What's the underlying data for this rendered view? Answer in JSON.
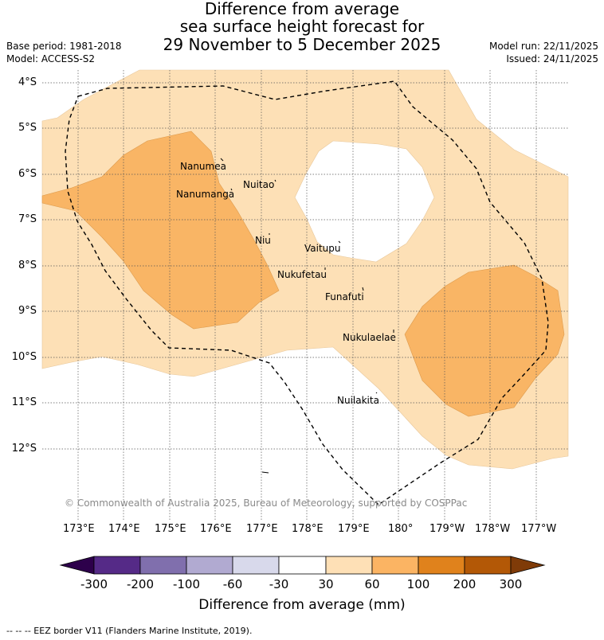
{
  "title": {
    "line1": "Difference from average",
    "line2": "sea surface height forecast for",
    "line3": "29 November to 5 December 2025"
  },
  "meta": {
    "base_period": "Base period: 1981-2018",
    "model": "Model: ACCESS-S2",
    "model_run": "Model run: 22/11/2025",
    "issued": "Issued: 24/11/2025"
  },
  "map": {
    "latitude_labels": [
      "4°S",
      "5°S",
      "6°S",
      "7°S",
      "8°S",
      "9°S",
      "10°S",
      "11°S",
      "12°S"
    ],
    "longitude_labels": [
      "173°E",
      "174°E",
      "175°E",
      "176°E",
      "177°E",
      "178°E",
      "179°E",
      "180°",
      "179°W",
      "178°W",
      "177°W"
    ],
    "islands": [
      "Nanumea",
      "Nuitao",
      "Nanumanga",
      "Niu",
      "Vaitupu",
      "Nukufetau",
      "Funafuti",
      "Nukulaelae",
      "Nuilakita"
    ],
    "copyright": "© Commonwealth of Australia 2025, Bureau of Meteorology, supported by COSPPac",
    "colors": {
      "band_30_60": "#fde0b6",
      "band_60_100": "#f9b565",
      "band_100_200": "#e0821c"
    }
  },
  "colorbar": {
    "ticks": [
      "-300",
      "-200",
      "-100",
      "-60",
      "-30",
      "30",
      "60",
      "100",
      "200",
      "300"
    ],
    "colors": [
      "#552a87",
      "#806fad",
      "#b1aad1",
      "#d8d9eb",
      "#ffffff",
      "#fee0b6",
      "#fbb463",
      "#e0821c",
      "#b35806"
    ],
    "low_extend_color": "#2d004b",
    "high_extend_color": "#7f3b08",
    "title": "Difference from average (mm)"
  },
  "footer": "--  --  -- EEZ border V11 (Flanders Marine Institute, 2019)."
}
